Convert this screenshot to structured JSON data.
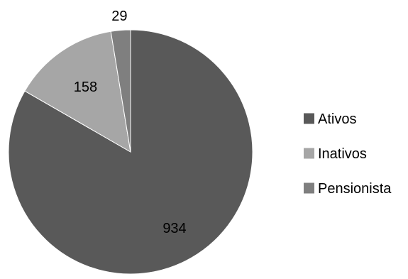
{
  "chart_data": {
    "type": "pie",
    "categories": [
      "Ativos",
      "Inativos",
      "Pensionista"
    ],
    "values": [
      934,
      158,
      29
    ],
    "colors": [
      "#595959",
      "#a6a6a6",
      "#7f7f7f"
    ],
    "start_angle_deg": 0,
    "direction": "clockwise",
    "legend": {
      "position": "right"
    }
  }
}
